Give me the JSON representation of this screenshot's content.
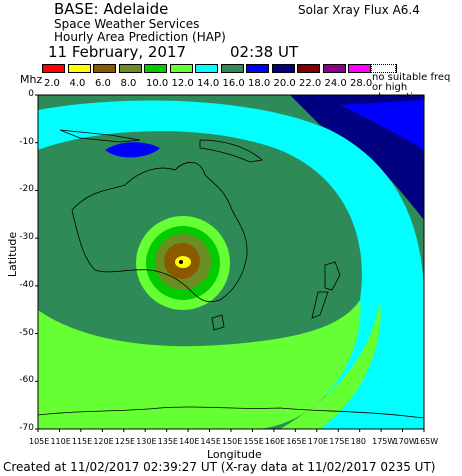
{
  "header": {
    "base": "BASE: Adelaide",
    "line1": "Space Weather Services",
    "line2": "Hourly Area Prediction (HAP)",
    "flux": "Solar Xray Flux A6.4",
    "date": "11 February, 2017",
    "time": "02:38 UT"
  },
  "legend": {
    "unit": "Mhz",
    "items": [
      {
        "label": "2.0",
        "color": "#ff0000"
      },
      {
        "label": "4.0",
        "color": "#ffff00"
      },
      {
        "label": "6.0",
        "color": "#8b5a00"
      },
      {
        "label": "8.0",
        "color": "#6b8e23"
      },
      {
        "label": "10.0",
        "color": "#00cc00"
      },
      {
        "label": "12.0",
        "color": "#66ff33"
      },
      {
        "label": "14.0",
        "color": "#00ffff"
      },
      {
        "label": "16.0",
        "color": "#2e8b57"
      },
      {
        "label": "18.0",
        "color": "#0000ff"
      },
      {
        "label": "20.0",
        "color": "#000080"
      },
      {
        "label": "22.0",
        "color": "#800000"
      },
      {
        "label": "24.0",
        "color": "#8b008b"
      },
      {
        "label": "28.0",
        "color": "#ff00ff"
      },
      {
        "label": "",
        "color": "#808080"
      }
    ],
    "nosuitable": "no suitable freq or high absorption"
  },
  "axes": {
    "ylabel": "Latitude",
    "xlabel": "Longitude",
    "lat_ticks": [
      "0",
      "-10",
      "-20",
      "-30",
      "-40",
      "-50",
      "-60",
      "-70"
    ],
    "lon_ticks": [
      "105E",
      "110E",
      "115E",
      "120E",
      "125E",
      "130E",
      "135E",
      "140E",
      "145E",
      "150E",
      "155E",
      "160E",
      "165E",
      "170E",
      "175E",
      "180",
      "175W",
      "170W",
      "165W"
    ]
  },
  "map": {
    "base_marker_label": "Adelaide",
    "colors": {
      "navy": "#000080",
      "blue": "#0000ff",
      "teal": "#2e8b57",
      "cyan": "#00ffff",
      "lightgreen": "#66ff33",
      "green": "#00cc00",
      "olive": "#6b8e23",
      "brown": "#8b5a00",
      "yellow": "#ffff00"
    }
  },
  "footer": "Created at 11/02/2017 02:39:27 UT (X-ray data at 11/02/2017 0235 UT)"
}
